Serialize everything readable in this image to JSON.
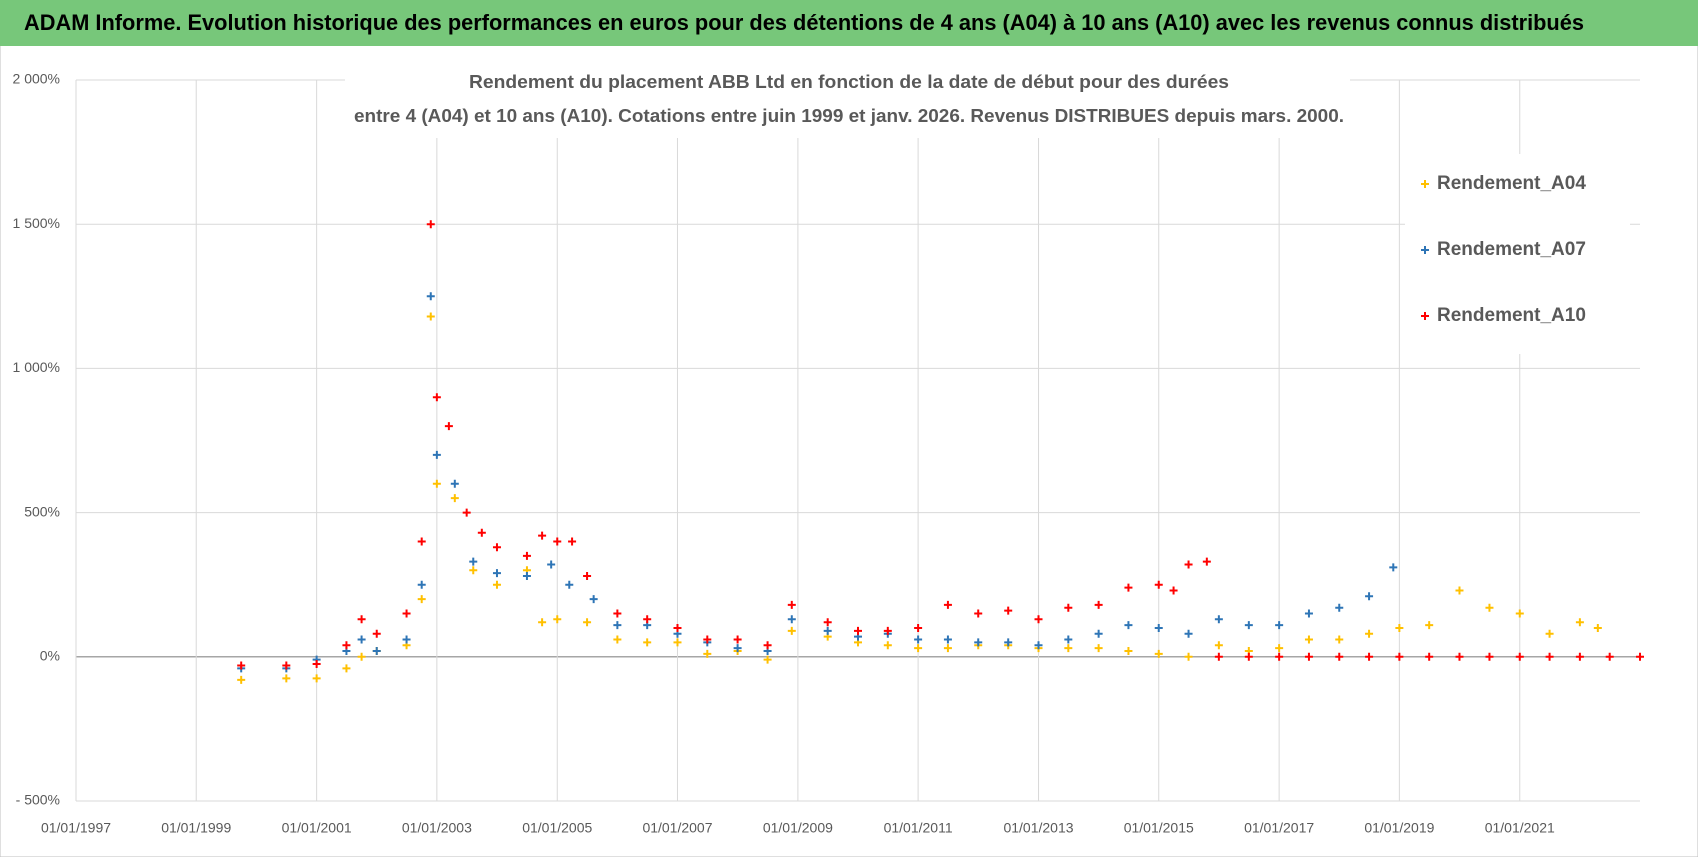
{
  "chart_data": {
    "type": "scatter",
    "title": "ADAM Informe. Evolution historique des performances en euros pour des détentions de 4 ans (A04) à 10 ans (A10) avec les revenus connus distribués",
    "subtitle": [
      "Rendement du placement ABB Ltd en fonction de la date de début pour des durées",
      "entre 4 (A04) et 10 ans (A10). Cotations entre juin 1999 et janv. 2026. Revenus DISTRIBUES depuis mars. 2000."
    ],
    "xlim": [
      "1997-01-01",
      "2023-01-01"
    ],
    "xticks": [
      {
        "value": "1997-01-01",
        "label": "01/01/1997"
      },
      {
        "value": "1999-01-01",
        "label": "01/01/1999"
      },
      {
        "value": "2001-01-01",
        "label": "01/01/2001"
      },
      {
        "value": "2003-01-01",
        "label": "01/01/2003"
      },
      {
        "value": "2005-01-01",
        "label": "01/01/2005"
      },
      {
        "value": "2007-01-01",
        "label": "01/01/2007"
      },
      {
        "value": "2009-01-01",
        "label": "01/01/2009"
      },
      {
        "value": "2011-01-01",
        "label": "01/01/2011"
      },
      {
        "value": "2013-01-01",
        "label": "01/01/2013"
      },
      {
        "value": "2015-01-01",
        "label": "01/01/2015"
      },
      {
        "value": "2017-01-01",
        "label": "01/01/2017"
      },
      {
        "value": "2019-01-01",
        "label": "01/01/2019"
      },
      {
        "value": "2021-01-01",
        "label": "01/01/2021"
      }
    ],
    "ylim": [
      -500,
      2000
    ],
    "yticks": [
      {
        "value": -500,
        "label": "- 500%"
      },
      {
        "value": 0,
        "label": "0%"
      },
      {
        "value": 500,
        "label": "500%"
      },
      {
        "value": 1000,
        "label": "1 000%"
      },
      {
        "value": 1500,
        "label": "1 500%"
      },
      {
        "value": 2000,
        "label": "2 000%"
      }
    ],
    "grid": true,
    "legend": "upper right",
    "series": [
      {
        "name": "Rendement_A04",
        "color": "#ffc000",
        "x": [
          "1999-10-01",
          "2000-07-01",
          "2001-01-01",
          "2001-07-01",
          "2001-10-01",
          "2002-01-01",
          "2002-07-01",
          "2002-10-01",
          "2002-11-25",
          "2003-01-01",
          "2003-04-20",
          "2003-08-10",
          "2004-01-01",
          "2004-07-01",
          "2004-10-01",
          "2005-01-01",
          "2005-07-01",
          "2006-01-01",
          "2006-07-01",
          "2007-01-01",
          "2007-07-01",
          "2008-01-01",
          "2008-07-01",
          "2008-11-25",
          "2009-07-01",
          "2010-01-01",
          "2010-07-01",
          "2011-01-01",
          "2011-07-01",
          "2012-01-01",
          "2012-07-01",
          "2013-01-01",
          "2013-07-01",
          "2014-01-01",
          "2014-07-01",
          "2015-01-01",
          "2015-07-01",
          "2016-01-01",
          "2016-07-01",
          "2017-01-01",
          "2017-07-01",
          "2018-01-01",
          "2018-07-01",
          "2019-01-01",
          "2019-07-01",
          "2020-01-01",
          "2020-07-01",
          "2021-01-01",
          "2021-07-01",
          "2022-01-01",
          "2022-04-20"
        ],
        "values": [
          -80,
          -75,
          -75,
          -40,
          0,
          20,
          40,
          200,
          1180,
          600,
          550,
          300,
          250,
          300,
          120,
          130,
          120,
          60,
          50,
          50,
          10,
          20,
          -10,
          90,
          70,
          50,
          40,
          30,
          30,
          40,
          40,
          30,
          30,
          30,
          20,
          10,
          0,
          40,
          20,
          30,
          60,
          60,
          80,
          100,
          110,
          230,
          170,
          150,
          80,
          120,
          100
        ]
      },
      {
        "name": "Rendement_A07",
        "color": "#2e75b6",
        "x": [
          "1999-10-01",
          "2000-07-01",
          "2001-01-01",
          "2001-07-01",
          "2001-10-01",
          "2002-01-01",
          "2002-07-01",
          "2002-10-01",
          "2002-11-25",
          "2003-01-01",
          "2003-04-20",
          "2003-08-10",
          "2004-01-01",
          "2004-07-01",
          "2004-11-25",
          "2005-03-15",
          "2005-08-10",
          "2006-01-01",
          "2006-07-01",
          "2007-01-01",
          "2007-07-01",
          "2008-01-01",
          "2008-07-01",
          "2008-11-25",
          "2009-07-01",
          "2010-01-01",
          "2010-07-01",
          "2011-01-01",
          "2011-07-01",
          "2012-01-01",
          "2012-07-01",
          "2013-01-01",
          "2013-07-01",
          "2014-01-01",
          "2014-07-01",
          "2015-01-01",
          "2015-07-01",
          "2016-01-01",
          "2016-07-01",
          "2017-01-01",
          "2017-07-01",
          "2018-01-01",
          "2018-07-01",
          "2018-11-25"
        ],
        "values": [
          -40,
          -40,
          -10,
          20,
          60,
          20,
          60,
          250,
          1250,
          700,
          600,
          330,
          290,
          280,
          320,
          250,
          200,
          110,
          110,
          80,
          50,
          30,
          20,
          130,
          90,
          70,
          80,
          60,
          60,
          50,
          50,
          40,
          60,
          80,
          110,
          100,
          80,
          130,
          110,
          110,
          150,
          170,
          210,
          310
        ]
      },
      {
        "name": "Rendement_A10",
        "color": "#ff0000",
        "x": [
          "1999-10-01",
          "2000-07-01",
          "2001-01-01",
          "2001-07-01",
          "2001-10-01",
          "2002-01-01",
          "2002-07-01",
          "2002-10-01",
          "2002-11-25",
          "2003-01-01",
          "2003-03-15",
          "2003-07-01",
          "2003-10-01",
          "2004-01-01",
          "2004-07-01",
          "2004-10-01",
          "2005-01-01",
          "2005-04-01",
          "2005-07-01",
          "2006-01-01",
          "2006-07-01",
          "2007-01-01",
          "2007-07-01",
          "2008-01-01",
          "2008-07-01",
          "2008-11-25",
          "2009-07-01",
          "2010-01-01",
          "2010-07-01",
          "2011-01-01",
          "2011-07-01",
          "2012-01-01",
          "2012-07-01",
          "2013-01-01",
          "2013-07-01",
          "2014-01-01",
          "2014-07-01",
          "2015-01-01",
          "2015-04-01",
          "2015-07-01",
          "2015-10-20",
          "2016-01-01",
          "2016-07-01",
          "2017-01-01",
          "2017-07-01",
          "2018-01-01",
          "2018-07-01",
          "2019-01-01",
          "2019-07-01",
          "2020-01-01",
          "2020-07-01",
          "2021-01-01",
          "2021-07-01",
          "2022-01-01",
          "2022-07-01",
          "2023-01-01"
        ],
        "values": [
          -30,
          -30,
          -25,
          40,
          130,
          80,
          150,
          400,
          1500,
          900,
          800,
          500,
          430,
          380,
          350,
          420,
          400,
          400,
          280,
          150,
          130,
          100,
          60,
          60,
          40,
          180,
          120,
          90,
          90,
          100,
          180,
          150,
          160,
          130,
          170,
          180,
          240,
          250,
          230,
          320,
          330,
          0,
          0,
          0,
          0,
          0,
          0,
          0,
          0,
          0,
          0,
          0,
          0,
          0,
          0,
          0
        ]
      }
    ]
  }
}
